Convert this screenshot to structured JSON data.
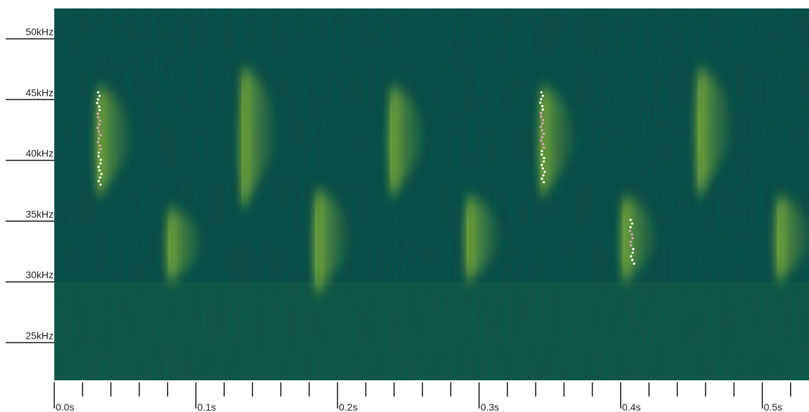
{
  "chart_data": {
    "type": "spectrogram",
    "xlim": [
      0,
      0.533
    ],
    "ylim": [
      21.9,
      52.5
    ],
    "xticks": [
      {
        "value": 0.0,
        "label": "0.0s"
      },
      {
        "value": 0.1,
        "label": "0.1s"
      },
      {
        "value": 0.2,
        "label": "0.2s"
      },
      {
        "value": 0.3,
        "label": "0.3s"
      },
      {
        "value": 0.4,
        "label": "0.4s"
      },
      {
        "value": 0.5,
        "label": "0.5s"
      }
    ],
    "xminor": [
      0.02,
      0.04,
      0.06,
      0.08,
      0.12,
      0.14,
      0.16,
      0.18,
      0.22,
      0.24,
      0.26,
      0.28,
      0.32,
      0.34,
      0.36,
      0.38,
      0.42,
      0.44,
      0.46,
      0.48,
      0.52
    ],
    "yticks": [
      {
        "value": 50,
        "label": "50kHz"
      },
      {
        "value": 45,
        "label": "45kHz"
      },
      {
        "value": 40,
        "label": "40kHz"
      },
      {
        "value": 35,
        "label": "35kHz"
      },
      {
        "value": 30,
        "label": "30kHz"
      },
      {
        "value": 25,
        "label": "25kHz"
      }
    ],
    "background_color": "#0e4c46",
    "call_color": "#c8ea2e",
    "detection_color": "#ffffff",
    "calls": {
      "t": [
        0.031,
        0.081,
        0.133,
        0.185,
        0.238,
        0.292,
        0.344,
        0.402,
        0.455,
        0.511
      ],
      "top": [
        46,
        36,
        47.5,
        37.5,
        46,
        37,
        46,
        37,
        47.5,
        37
      ],
      "bottom": [
        37,
        30,
        36,
        29,
        37,
        30,
        37,
        30,
        37,
        30
      ]
    },
    "detections": {
      "t": [
        0.031,
        0.344,
        0.407
      ],
      "top": [
        45.6,
        45.6,
        35.1
      ],
      "bottom": [
        38,
        38.2,
        31.5
      ]
    }
  }
}
